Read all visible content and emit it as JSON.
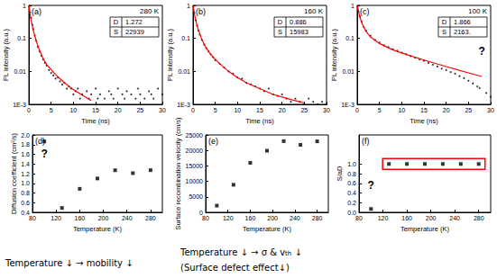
{
  "chart_data": [
    {
      "type": "scatter",
      "label": "(a)",
      "temperature": "280 K",
      "inset": [
        {
          "name": "D",
          "value": 1.272
        },
        {
          "name": "S",
          "value": 22939
        }
      ],
      "x_label": "Time (ns)",
      "y_label": "PL intensity (a.u.)",
      "log": "y",
      "xlim": [
        0,
        30
      ],
      "xticks": [
        0,
        5,
        10,
        15,
        20,
        25,
        30
      ],
      "ylim": [
        0.001,
        1
      ],
      "yticks": [
        {
          "value": 0.001,
          "label": "1E-3"
        },
        0.01,
        0.1,
        1
      ],
      "grid": false,
      "series": [
        {
          "type": "scatter",
          "marker": "circle",
          "color": "#000000",
          "x": [
            0.1,
            0.3,
            0.5,
            0.8,
            1.0,
            1.3,
            1.6,
            2.0,
            2.4,
            2.8,
            3.2,
            3.6,
            4.0,
            4.5,
            5.0,
            5.5,
            6.0,
            6.5,
            7.0,
            7.5,
            8.0,
            8.5,
            9.0,
            9.5,
            10,
            10.5,
            11,
            11.5,
            12,
            13,
            13.5,
            14,
            15,
            15.5,
            16,
            17,
            18,
            18.5,
            19,
            20,
            21,
            21.5,
            22,
            23,
            24,
            24.5,
            25,
            26,
            27,
            27.5,
            28,
            29,
            30
          ],
          "values": [
            0.95,
            0.62,
            0.42,
            0.26,
            0.19,
            0.12,
            0.085,
            0.055,
            0.04,
            0.03,
            0.023,
            0.018,
            0.015,
            0.011,
            0.009,
            0.0075,
            0.006,
            0.0065,
            0.005,
            0.004,
            0.0045,
            0.003,
            0.0035,
            0.003,
            0.002,
            0.0025,
            0.003,
            0.0015,
            0.002,
            0.0025,
            0.0015,
            0.002,
            0.003,
            0.0015,
            0.002,
            0.0015,
            0.0025,
            0.002,
            0.0015,
            0.003,
            0.002,
            0.0015,
            0.0025,
            0.002,
            0.0015,
            0.003,
            0.002,
            0.0015,
            0.0025,
            0.002,
            0.0015,
            0.003,
            0.002
          ]
        },
        {
          "type": "line",
          "line_style": "solid",
          "color": "#ff0000",
          "x": [
            0,
            0.5,
            1,
            2,
            3,
            4,
            6,
            8,
            10,
            12,
            14
          ],
          "values": [
            1,
            0.35,
            0.17,
            0.06,
            0.028,
            0.016,
            0.008,
            0.0045,
            0.0028,
            0.0019,
            0.0013
          ]
        }
      ]
    },
    {
      "type": "scatter",
      "label": "(b)",
      "temperature": "160 K",
      "inset": [
        {
          "name": "D",
          "value": 0.886
        },
        {
          "name": "S",
          "value": 15983
        }
      ],
      "x_label": "Time (ns)",
      "y_label": "PL intensity (a.u.)",
      "log": "y",
      "xlim": [
        0,
        30
      ],
      "xticks": [
        0,
        5,
        10,
        15,
        20,
        25,
        30
      ],
      "ylim": [
        0.001,
        1
      ],
      "yticks": [
        {
          "value": 0.001,
          "label": "1E-3"
        },
        0.01,
        0.1,
        1
      ],
      "grid": false,
      "series": [
        {
          "type": "scatter",
          "marker": "circle",
          "color": "#000000",
          "x": [
            0.1,
            0.3,
            0.6,
            0.9,
            1.2,
            1.5,
            2.0,
            2.5,
            3.0,
            3.5,
            4.0,
            4.5,
            5.0,
            6.0,
            7.0,
            8,
            9,
            10,
            11,
            12,
            13,
            14,
            15,
            16,
            17,
            18,
            19,
            20,
            21,
            22,
            23,
            24,
            25,
            26,
            27,
            28,
            29,
            30
          ],
          "values": [
            0.95,
            0.6,
            0.35,
            0.24,
            0.17,
            0.13,
            0.09,
            0.065,
            0.05,
            0.04,
            0.033,
            0.027,
            0.022,
            0.017,
            0.013,
            0.01,
            0.0085,
            0.0065,
            0.006,
            0.0045,
            0.004,
            0.0035,
            0.003,
            0.0025,
            0.003,
            0.002,
            0.0018,
            0.002,
            0.0015,
            0.0012,
            0.0015,
            0.0012,
            0.001,
            0.0015,
            0.0012,
            0.001,
            0.0012,
            0.001
          ]
        },
        {
          "type": "line",
          "line_style": "solid",
          "color": "#ff0000",
          "x": [
            0,
            0.5,
            1,
            2,
            3,
            4,
            6,
            8,
            10,
            12,
            15,
            18,
            22,
            25
          ],
          "values": [
            1,
            0.4,
            0.22,
            0.09,
            0.05,
            0.032,
            0.017,
            0.01,
            0.0065,
            0.0045,
            0.003,
            0.002,
            0.0014,
            0.0011
          ]
        }
      ]
    },
    {
      "type": "scatter",
      "label": "(c)",
      "temperature": "100 K",
      "inset": [
        {
          "name": "D",
          "value": 1.866
        },
        {
          "name": "S",
          "value": 2163,
          "label": "2163."
        }
      ],
      "x_label": "Time (ns)",
      "y_label": "PL intensity (a.u.)",
      "log": "y",
      "xlim": [
        0,
        30
      ],
      "xticks": [
        0,
        5,
        10,
        15,
        20,
        25,
        30
      ],
      "ylim": [
        0.001,
        1
      ],
      "yticks": [
        {
          "value": 0.001,
          "label": "1E-3"
        },
        0.01,
        0.1,
        1
      ],
      "grid": false,
      "annotation": {
        "text": "?",
        "x": 28
      },
      "series": [
        {
          "type": "scatter",
          "marker": "circle",
          "color": "#000000",
          "x": [
            0.1,
            0.3,
            0.6,
            1.0,
            1.5,
            2,
            3,
            4,
            5,
            6,
            7,
            8,
            9,
            10,
            11,
            12,
            13,
            14,
            15,
            16,
            17,
            18,
            19,
            20,
            21,
            22,
            23,
            24,
            25,
            26,
            27,
            27.5,
            29,
            30
          ],
          "values": [
            0.95,
            0.65,
            0.45,
            0.32,
            0.22,
            0.17,
            0.12,
            0.09,
            0.075,
            0.062,
            0.054,
            0.047,
            0.042,
            0.037,
            0.033,
            0.029,
            0.026,
            0.023,
            0.021,
            0.018,
            0.016,
            0.014,
            0.012,
            0.011,
            0.0095,
            0.0085,
            0.0072,
            0.0062,
            0.0052,
            0.0043,
            0.0035,
            0.0031,
            0.0022,
            0.0017
          ]
        },
        {
          "type": "line",
          "line_style": "solid",
          "color": "#ff0000",
          "x": [
            0,
            0.5,
            1,
            2,
            3,
            5,
            8,
            10,
            15,
            20,
            25,
            28
          ],
          "values": [
            1,
            0.5,
            0.3,
            0.16,
            0.11,
            0.07,
            0.045,
            0.036,
            0.022,
            0.014,
            0.009,
            0.007
          ]
        }
      ]
    },
    {
      "type": "scatter",
      "label": "(d)",
      "x_label": "Temperature (K)",
      "y_label": "Diffusion coefficient (cm²/s)",
      "xlim": [
        80,
        300
      ],
      "xticks": [
        80,
        120,
        160,
        200,
        240,
        280
      ],
      "ylim": [
        0.4,
        2.0
      ],
      "yticks": [
        0.4,
        0.6,
        0.8,
        {
          "value": 1,
          "label": "1.0"
        },
        1.2,
        1.4,
        1.6,
        1.8,
        {
          "value": 2,
          "label": "2.0"
        }
      ],
      "grid": false,
      "annotation": {
        "text": "?",
        "x": 100
      },
      "series": [
        {
          "type": "scatter",
          "marker": "square",
          "color": "#000000",
          "x": [
            100,
            130,
            160,
            190,
            220,
            250,
            280
          ],
          "values": [
            1.866,
            0.49,
            0.886,
            1.1,
            1.27,
            1.21,
            1.272
          ]
        }
      ]
    },
    {
      "type": "scatter",
      "label": "(e)",
      "x_label": "Temperature (K)",
      "y_label": "Surface recombination velocity (cm/s)",
      "xlim": [
        80,
        300
      ],
      "xticks": [
        80,
        120,
        160,
        200,
        240,
        280
      ],
      "ylim": [
        0,
        25000
      ],
      "yticks": [
        0,
        5000,
        10000,
        15000,
        20000,
        25000
      ],
      "grid": false,
      "series": [
        {
          "type": "scatter",
          "marker": "square",
          "color": "#000000",
          "x": [
            100,
            130,
            160,
            190,
            220,
            250,
            280
          ],
          "values": [
            2163,
            8900,
            15983,
            19900,
            23000,
            21800,
            22939
          ]
        }
      ]
    },
    {
      "type": "scatter",
      "label": "(f)",
      "x_label": "Temperature (K)",
      "y_label": "S/aD",
      "xlim": [
        80,
        300
      ],
      "xticks": [
        80,
        120,
        160,
        200,
        240,
        280
      ],
      "ylim": [
        0,
        1.6
      ],
      "yticks": [
        {
          "value": 0,
          "label": "0.0"
        },
        0.2,
        0.4,
        0.6,
        0.8,
        {
          "value": 1,
          "label": "1.0"
        }
      ],
      "grid": false,
      "annotation": {
        "text": "?",
        "x": 100
      },
      "series": [
        {
          "type": "scatter",
          "marker": "square",
          "color": "#000000",
          "x": [
            100,
            130,
            160,
            190,
            220,
            250,
            280
          ],
          "values": [
            0.07,
            1,
            1,
            1,
            1,
            1,
            1
          ]
        }
      ]
    }
  ],
  "annotations": [
    {
      "segments": [
        {
          "text": "Temperature ↓ → mobility ↓"
        }
      ]
    },
    {
      "segments": [
        {
          "text": "Temperature ↓ → σ & v"
        },
        {
          "text": "th",
          "subscript": true
        },
        {
          "text": " ↓"
        }
      ]
    },
    {
      "segments": [
        {
          "text": "(Surface defect effect↓)"
        }
      ]
    }
  ]
}
